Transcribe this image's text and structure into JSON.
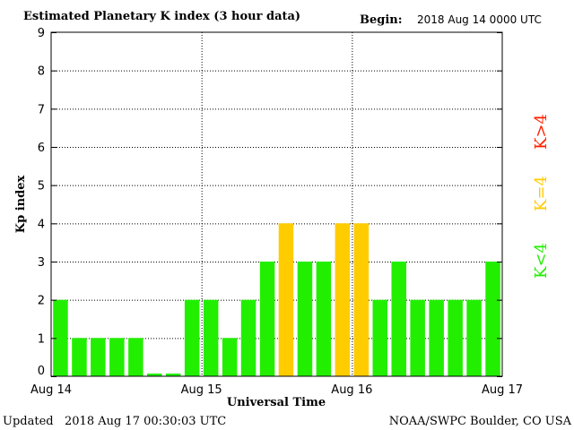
{
  "header": {
    "title": "Estimated Planetary K index (3 hour data)",
    "begin_label": "Begin:",
    "begin_value": "2018 Aug 14 0000 UTC"
  },
  "footer": {
    "updated_label": "Updated",
    "updated_value": "2018 Aug 17 00:30:03 UTC",
    "source": "NOAA/SWPC Boulder, CO USA"
  },
  "legend": {
    "high": "K>4",
    "equal": "K=4",
    "low": "K<4"
  },
  "colors": {
    "low": "#22ee00",
    "equal": "#ffcc00",
    "high": "#ff2200"
  },
  "chart_data": {
    "type": "bar",
    "ylabel": "Kp index",
    "xlabel": "Universal Time",
    "ylim": [
      0,
      9
    ],
    "yticks": [
      "0",
      "1",
      "2",
      "3",
      "4",
      "5",
      "6",
      "7",
      "8",
      "9"
    ],
    "xticks": [
      "Aug 14",
      "Aug 15",
      "Aug 16",
      "Aug 17"
    ],
    "grid": true,
    "bars_per_day": 8,
    "values": [
      2,
      1,
      1,
      1,
      1,
      0.07,
      0.07,
      2,
      2,
      1,
      2,
      3,
      4,
      3,
      3,
      4,
      4,
      2,
      3,
      2,
      2,
      2,
      2,
      3
    ]
  }
}
